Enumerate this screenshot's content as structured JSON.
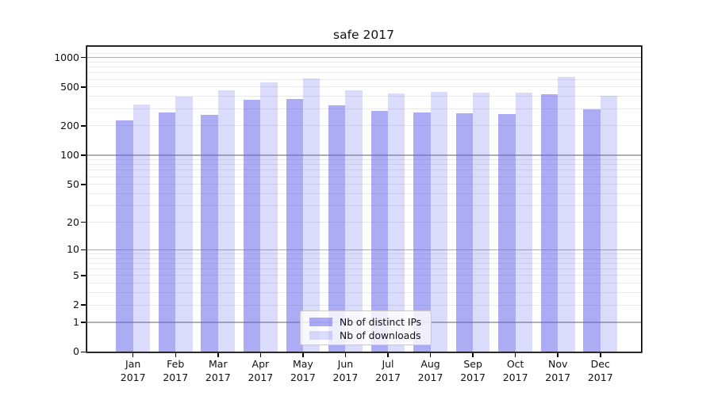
{
  "chart_data": {
    "type": "bar",
    "title": "safe 2017",
    "months": [
      "Jan",
      "Feb",
      "Mar",
      "Apr",
      "May",
      "Jun",
      "Jul",
      "Aug",
      "Sep",
      "Oct",
      "Nov",
      "Dec"
    ],
    "year": "2017",
    "series": [
      {
        "name": "Nb of distinct IPs",
        "color": "rgba(90,90,235,0.50)",
        "values": [
          228,
          276,
          260,
          371,
          374,
          324,
          286,
          274,
          268,
          264,
          422,
          298
        ]
      },
      {
        "name": "Nb of downloads",
        "color": "rgba(90,90,235,0.22)",
        "values": [
          331,
          397,
          461,
          553,
          608,
          461,
          428,
          449,
          436,
          441,
          640,
          409
        ]
      }
    ],
    "y_axis": {
      "scale": "log1p",
      "ylim": [
        0,
        1300
      ],
      "tick_values": [
        0,
        1,
        2,
        5,
        10,
        20,
        50,
        100,
        200,
        500,
        1000
      ],
      "tick_labels": [
        "0",
        "1",
        "2",
        "5",
        "10",
        "20",
        "50",
        "100",
        "200",
        "500",
        "1000"
      ],
      "major_grid_values": [
        1,
        10,
        100,
        1000
      ],
      "minor_grid_values": [
        2,
        3,
        4,
        5,
        6,
        7,
        8,
        9,
        20,
        30,
        40,
        50,
        60,
        70,
        80,
        90,
        200,
        300,
        400,
        500,
        600,
        700,
        800,
        900,
        1100
      ]
    },
    "grid": true,
    "legend_position": "lower center",
    "colors": {
      "major_grid": "#b0b0b0",
      "minor_grid": "#e9e9e9",
      "axis": "#000000",
      "text": "#111111"
    }
  }
}
